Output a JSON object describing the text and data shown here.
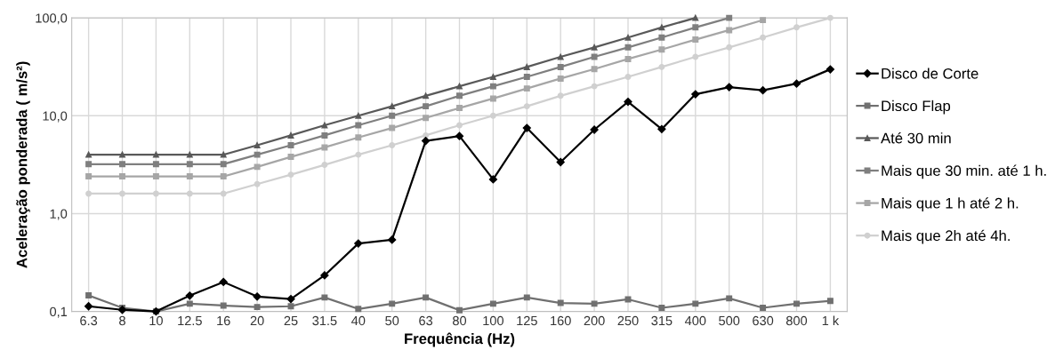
{
  "chart_data": {
    "type": "line",
    "xlabel": "Frequência (Hz)",
    "ylabel": "Aceleração ponderada ( m/s²)",
    "categories": [
      "6.3",
      "8",
      "10",
      "12.5",
      "16",
      "20",
      "25",
      "31.5",
      "40",
      "50",
      "63",
      "80",
      "100",
      "125",
      "160",
      "200",
      "250",
      "315",
      "400",
      "500",
      "630",
      "800",
      "1 k"
    ],
    "log": true,
    "ylim": [
      0.1,
      100
    ],
    "yticks": [
      {
        "value": 0.1,
        "label": "0,1"
      },
      {
        "value": 1,
        "label": "1,0"
      },
      {
        "value": 10,
        "label": "10,0"
      },
      {
        "value": 100,
        "label": "100,0"
      }
    ],
    "grid": true,
    "legend": "right",
    "line_style": "solid",
    "series": [
      {
        "name": "Disco de Corte",
        "color": "#000000",
        "marker": "diamond",
        "values": [
          0.113,
          0.104,
          0.1,
          0.145,
          0.2,
          0.142,
          0.134,
          0.234,
          0.495,
          0.54,
          5.54,
          6.2,
          2.24,
          7.5,
          3.36,
          7.2,
          13.9,
          7.3,
          16.6,
          19.6,
          18.2,
          21.3,
          29.8
        ]
      },
      {
        "name": "Disco Flap",
        "color": "#707070",
        "marker": "square",
        "values": [
          0.146,
          0.109,
          0.1,
          0.12,
          0.115,
          0.111,
          0.113,
          0.139,
          0.106,
          0.12,
          0.139,
          0.103,
          0.12,
          0.139,
          0.122,
          0.12,
          0.133,
          0.109,
          0.12,
          0.136,
          0.109,
          0.12,
          0.128
        ]
      },
      {
        "name": "Até 30 min",
        "color": "#595959",
        "marker": "triangle",
        "values": [
          4,
          4,
          4,
          4,
          4,
          5,
          6.3,
          8,
          10,
          12.5,
          16,
          20,
          25,
          31.5,
          40,
          50,
          63,
          80,
          100,
          null,
          null,
          null,
          null
        ]
      },
      {
        "name": "Mais que 30 min. até 1 h.",
        "color": "#7f7f7f",
        "marker": "square",
        "values": [
          3.2,
          3.2,
          3.2,
          3.2,
          3.2,
          4,
          5,
          6.3,
          8,
          10,
          12.5,
          16,
          20,
          25,
          31.5,
          40,
          50,
          63,
          80,
          100,
          null,
          null,
          null
        ]
      },
      {
        "name": "Mais que 1 h até 2 h.",
        "color": "#a6a6a6",
        "marker": "square",
        "values": [
          2.4,
          2.4,
          2.4,
          2.4,
          2.4,
          3,
          3.8,
          4.75,
          6,
          7.5,
          9.5,
          12,
          15,
          19,
          24,
          30,
          38,
          47.5,
          60,
          75,
          95,
          null,
          null
        ]
      },
      {
        "name": "Mais que 2h até 4h.",
        "color": "#d0d0d0",
        "marker": "circle",
        "values": [
          1.6,
          1.6,
          1.6,
          1.6,
          1.6,
          2,
          2.5,
          3.15,
          4,
          5,
          6.3,
          8,
          10,
          12.5,
          16,
          20,
          25,
          31.5,
          40,
          50,
          63,
          80,
          100
        ]
      }
    ]
  }
}
